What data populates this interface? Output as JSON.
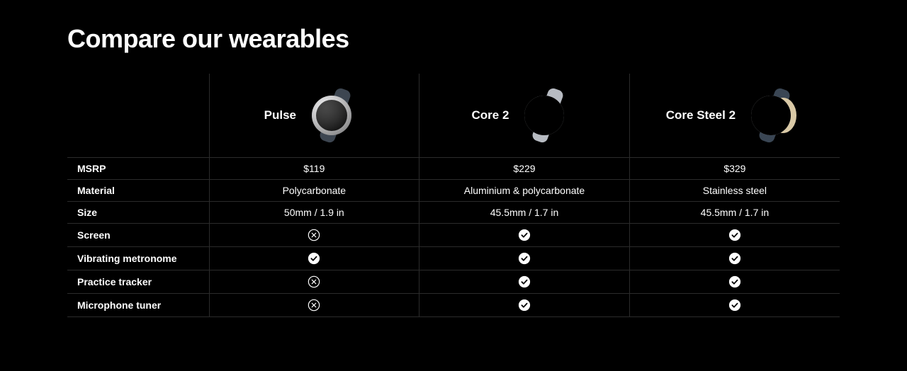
{
  "page": {
    "title": "Compare our wearables",
    "background": "#000000",
    "text_color": "#ffffff",
    "border_color": "#2b2b2b",
    "title_fontsize": 36,
    "body_fontsize": 14,
    "product_name_fontsize": 17
  },
  "products": [
    {
      "name": "Pulse",
      "image_icon": "watch-round-dark-whitebezel",
      "colors": {
        "bezel": "#e8e8ea",
        "face": "#0b0b0b",
        "strap": "#3d4651"
      }
    },
    {
      "name": "Core 2",
      "image_icon": "watch-round-silver",
      "colors": {
        "bezel": "#c9ccd1",
        "face": "#1a1b1e",
        "strap": "#b7bbc2"
      }
    },
    {
      "name": "Core Steel 2",
      "image_icon": "watch-round-steel",
      "colors": {
        "bezel": "#dfe1e4",
        "face": "#15161a",
        "strap": "#3a4654",
        "inner": "#d9c9a6"
      }
    }
  ],
  "rows": [
    {
      "label": "MSRP",
      "type": "text",
      "values": [
        "$119",
        "$229",
        "$329"
      ]
    },
    {
      "label": "Material",
      "type": "text",
      "values": [
        "Polycarbonate",
        "Aluminium & polycarbonate",
        "Stainless steel"
      ]
    },
    {
      "label": "Size",
      "type": "text",
      "values": [
        "50mm / 1.9 in",
        "45.5mm / 1.7 in",
        "45.5mm / 1.7 in"
      ]
    },
    {
      "label": "Screen",
      "type": "bool",
      "values": [
        false,
        true,
        true
      ]
    },
    {
      "label": "Vibrating metronome",
      "type": "bool",
      "values": [
        true,
        true,
        true
      ]
    },
    {
      "label": "Practice tracker",
      "type": "bool",
      "values": [
        false,
        true,
        true
      ]
    },
    {
      "label": "Microphone tuner",
      "type": "bool",
      "values": [
        false,
        true,
        true
      ]
    }
  ],
  "icons": {
    "check": {
      "bg": "#ffffff",
      "fg": "#000000"
    },
    "cross": {
      "stroke": "#ffffff"
    }
  }
}
